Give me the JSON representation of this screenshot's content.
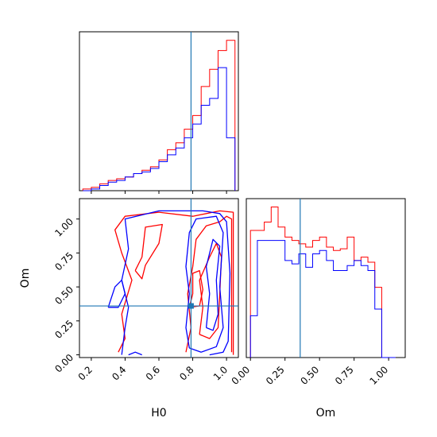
{
  "chart_data": {
    "type": "corner",
    "parameters": [
      "H0",
      "Om"
    ],
    "truth": {
      "H0": 0.79,
      "Om": 0.36
    },
    "colors": {
      "series_a": "#ff0000",
      "series_b": "#0000ff",
      "truth": "#1f77b4",
      "frame": "#000000"
    },
    "grid": false,
    "panels": [
      {
        "id": "hist-H0",
        "type": "histogram",
        "xlim": [
          0.13,
          1.07
        ],
        "xticks": [
          0.2,
          0.4,
          0.6,
          0.8,
          1.0
        ],
        "bin_edges": [
          0.15,
          0.2,
          0.25,
          0.3,
          0.35,
          0.4,
          0.45,
          0.5,
          0.55,
          0.6,
          0.65,
          0.7,
          0.75,
          0.8,
          0.85,
          0.9,
          0.95,
          1.0,
          1.05
        ],
        "series": [
          {
            "color": "red",
            "values": [
              0.01,
              0.02,
              0.04,
              0.06,
              0.07,
              0.08,
              0.1,
              0.12,
              0.14,
              0.18,
              0.24,
              0.28,
              0.36,
              0.44,
              0.61,
              0.71,
              0.82,
              0.88
            ]
          },
          {
            "color": "blue",
            "values": [
              0.0,
              0.01,
              0.03,
              0.05,
              0.06,
              0.08,
              0.1,
              0.11,
              0.13,
              0.17,
              0.21,
              0.25,
              0.31,
              0.39,
              0.5,
              0.54,
              0.72,
              0.31
            ]
          }
        ]
      },
      {
        "id": "hist-Om",
        "type": "histogram",
        "xlim": [
          -0.03,
          1.12
        ],
        "xticks": [
          0.0,
          0.25,
          0.5,
          0.75,
          1.0
        ],
        "xticklabels": [
          "0.00",
          "0.25",
          "0.50",
          "0.75",
          "1.00"
        ],
        "xlabel": "Om",
        "bin_edges": [
          0.0,
          0.05,
          0.1,
          0.15,
          0.2,
          0.25,
          0.3,
          0.35,
          0.4,
          0.45,
          0.5,
          0.55,
          0.6,
          0.65,
          0.7,
          0.75,
          0.8,
          0.85,
          0.9,
          0.95,
          1.0,
          1.05
        ],
        "series": [
          {
            "color": "red",
            "values": [
              0.76,
              0.76,
              0.81,
              0.9,
              0.78,
              0.72,
              0.7,
              0.68,
              0.66,
              0.7,
              0.72,
              0.66,
              0.64,
              0.65,
              0.72,
              0.58,
              0.6,
              0.57,
              0.42,
              0.0,
              0.0
            ]
          },
          {
            "color": "blue",
            "values": [
              0.25,
              0.7,
              0.7,
              0.7,
              0.7,
              0.58,
              0.56,
              0.62,
              0.54,
              0.62,
              0.64,
              0.58,
              0.52,
              0.52,
              0.55,
              0.58,
              0.55,
              0.52,
              0.29,
              0.0,
              0.0
            ]
          }
        ]
      },
      {
        "id": "contour-H0-Om",
        "type": "contour",
        "xlim": [
          0.13,
          1.07
        ],
        "ylim": [
          -0.02,
          1.15
        ],
        "xticks": [
          0.2,
          0.4,
          0.6,
          0.8,
          1.0
        ],
        "yticks": [
          0.0,
          0.25,
          0.5,
          0.75,
          1.0
        ],
        "yticklabels": [
          "0.00",
          "0.25",
          "0.50",
          "0.75",
          "1.00"
        ],
        "xlabel": "H0",
        "ylabel": "Om",
        "series": [
          {
            "color": "red",
            "paths": [
              [
                [
                  0.36,
                  0.02
                ],
                [
                  0.4,
                  0.12
                ],
                [
                  0.38,
                  0.3
                ],
                [
                  0.44,
                  0.55
                ],
                [
                  0.38,
                  0.75
                ],
                [
                  0.34,
                  0.92
                ],
                [
                  0.4,
                  1.02
                ],
                [
                  0.6,
                  1.05
                ],
                [
                  0.8,
                  1.02
                ],
                [
                  0.96,
                  1.06
                ],
                [
                  1.04,
                  1.05
                ],
                [
                  1.04,
                  0.0
                ]
              ],
              [
                [
                  0.76,
                  0.02
                ],
                [
                  0.79,
                  0.2
                ],
                [
                  0.77,
                  0.45
                ],
                [
                  0.8,
                  0.65
                ],
                [
                  0.82,
                  0.85
                ],
                [
                  0.88,
                  0.95
                ],
                [
                  0.96,
                  0.98
                ],
                [
                  1.0,
                  1.02
                ],
                [
                  1.03,
                  1.0
                ],
                [
                  1.03,
                  0.02
                ]
              ],
              [
                [
                  0.46,
                  0.62
                ],
                [
                  0.5,
                  0.72
                ],
                [
                  0.52,
                  0.94
                ],
                [
                  0.62,
                  0.96
                ],
                [
                  0.6,
                  0.82
                ],
                [
                  0.52,
                  0.66
                ],
                [
                  0.5,
                  0.56
                ],
                [
                  0.46,
                  0.62
                ]
              ],
              [
                [
                  0.84,
                  0.15
                ],
                [
                  0.86,
                  0.35
                ],
                [
                  0.84,
                  0.55
                ],
                [
                  0.9,
                  0.72
                ],
                [
                  0.94,
                  0.82
                ],
                [
                  0.97,
                  0.72
                ],
                [
                  0.96,
                  0.45
                ],
                [
                  0.95,
                  0.2
                ],
                [
                  0.9,
                  0.12
                ],
                [
                  0.84,
                  0.15
                ]
              ],
              [
                [
                  0.78,
                  0.35
                ],
                [
                  0.8,
                  0.45
                ],
                [
                  0.8,
                  0.6
                ],
                [
                  0.84,
                  0.62
                ],
                [
                  0.86,
                  0.48
                ],
                [
                  0.84,
                  0.36
                ],
                [
                  0.78,
                  0.35
                ]
              ]
            ]
          },
          {
            "color": "blue",
            "paths": [
              [
                [
                  0.38,
                  0.0
                ],
                [
                  0.4,
                  0.2
                ],
                [
                  0.42,
                  0.35
                ],
                [
                  0.38,
                  0.55
                ],
                [
                  0.42,
                  0.78
                ],
                [
                  0.4,
                  1.0
                ],
                [
                  0.6,
                  1.06
                ],
                [
                  0.86,
                  1.06
                ],
                [
                  0.96,
                  1.04
                ],
                [
                  1.0,
                  0.98
                ],
                [
                  1.02,
                  0.6
                ],
                [
                  1.01,
                  0.1
                ],
                [
                  0.98,
                  0.02
                ],
                [
                  0.9,
                  0.0
                ]
              ],
              [
                [
                  0.78,
                  0.05
                ],
                [
                  0.76,
                  0.2
                ],
                [
                  0.78,
                  0.45
                ],
                [
                  0.76,
                  0.65
                ],
                [
                  0.78,
                  0.9
                ],
                [
                  0.82,
                  1.0
                ],
                [
                  0.94,
                  1.02
                ],
                [
                  0.98,
                  0.9
                ],
                [
                  0.96,
                  0.5
                ],
                [
                  0.98,
                  0.2
                ],
                [
                  0.94,
                  0.06
                ],
                [
                  0.85,
                  0.02
                ],
                [
                  0.78,
                  0.05
                ]
              ],
              [
                [
                  0.3,
                  0.35
                ],
                [
                  0.34,
                  0.5
                ],
                [
                  0.38,
                  0.55
                ],
                [
                  0.4,
                  0.45
                ],
                [
                  0.36,
                  0.35
                ],
                [
                  0.3,
                  0.35
                ]
              ],
              [
                [
                  0.88,
                  0.2
                ],
                [
                  0.9,
                  0.45
                ],
                [
                  0.88,
                  0.65
                ],
                [
                  0.92,
                  0.85
                ],
                [
                  0.96,
                  0.8
                ],
                [
                  0.94,
                  0.55
                ],
                [
                  0.95,
                  0.3
                ],
                [
                  0.92,
                  0.18
                ],
                [
                  0.88,
                  0.2
                ]
              ],
              [
                [
                  0.42,
                  0.0
                ],
                [
                  0.46,
                  0.02
                ],
                [
                  0.5,
                  0.0
                ]
              ]
            ]
          }
        ]
      }
    ]
  }
}
